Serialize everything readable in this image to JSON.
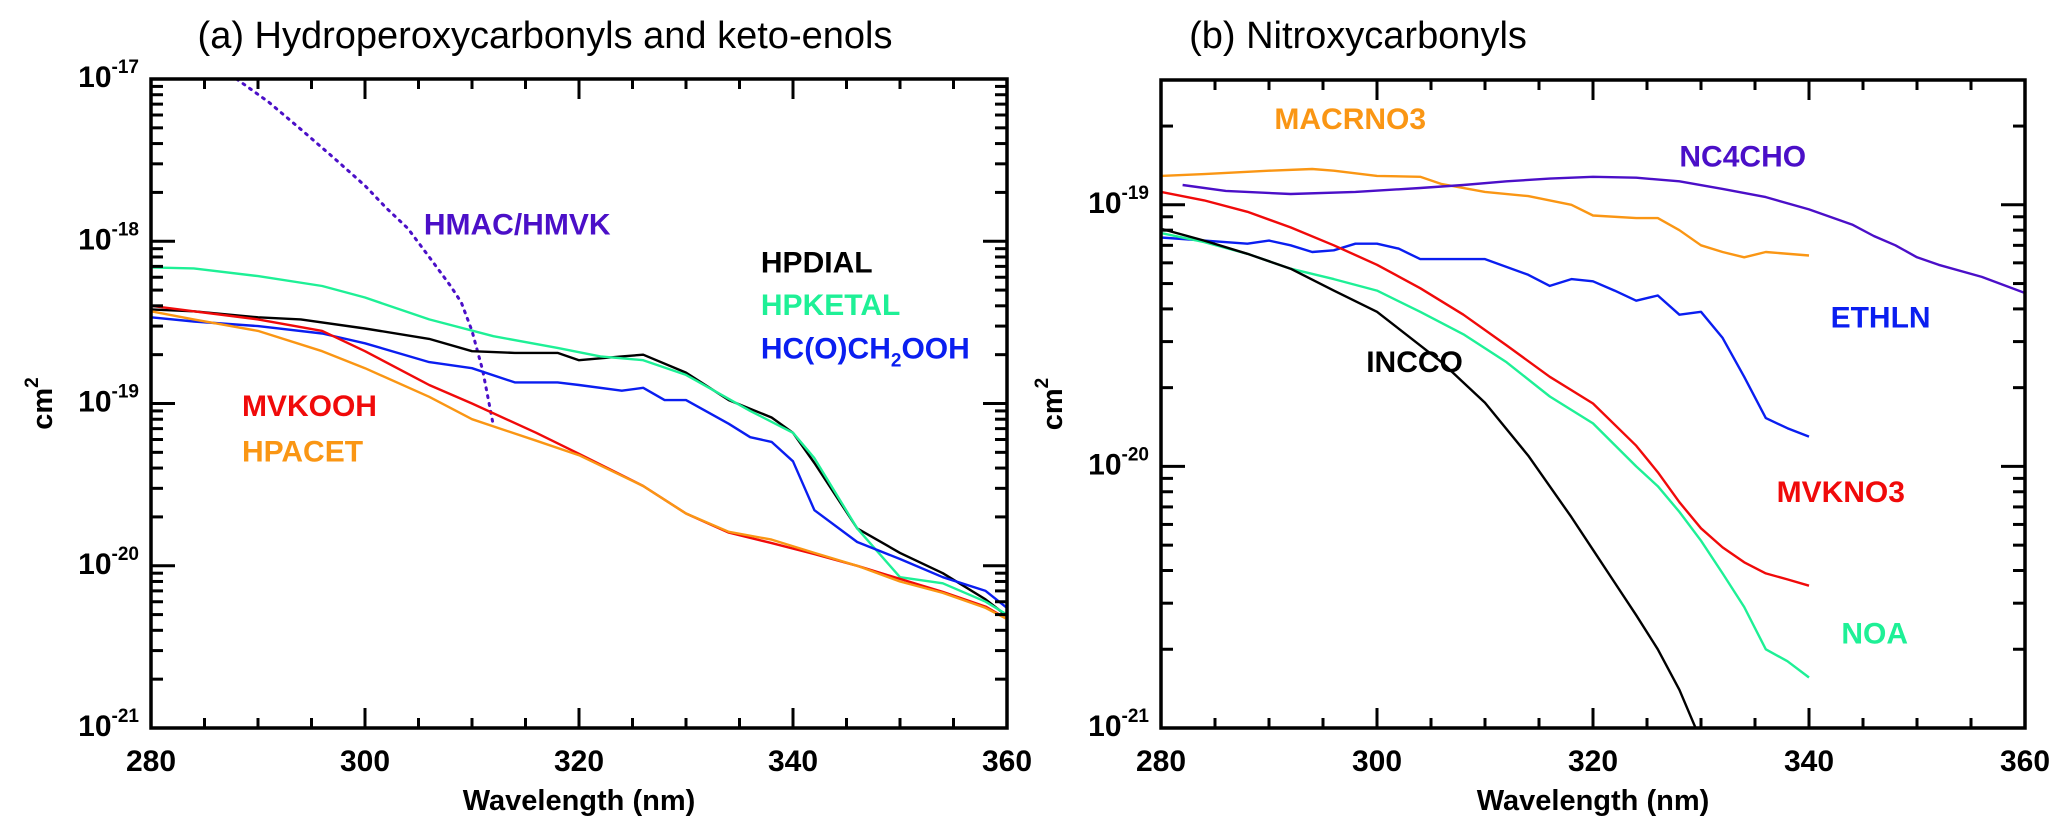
{
  "chart_data": [
    {
      "type": "line",
      "title": "(a) Hydroperoxycarbonyls and keto-enols",
      "xlabel": "Wavelength (nm)",
      "ylabel": "cm",
      "ylabel_superscript": "2",
      "yscale": "log",
      "xlim": [
        280,
        360
      ],
      "ylim": [
        1e-21,
        1e-17
      ],
      "xticks": [
        280,
        300,
        320,
        340,
        360
      ],
      "xtick_labels": [
        "280",
        "300",
        "320",
        "340",
        "360"
      ],
      "yticks": [
        1e-21,
        1e-20,
        1e-19,
        1e-18,
        1e-17
      ],
      "ytick_labels": [
        {
          "base": "10",
          "exp": "-21"
        },
        {
          "base": "10",
          "exp": "-20"
        },
        {
          "base": "10",
          "exp": "-19"
        },
        {
          "base": "10",
          "exp": "-18"
        },
        {
          "base": "10",
          "exp": "-17"
        }
      ],
      "grid": false,
      "series": [
        {
          "name": "HMAC/HMVK",
          "color": "#4B0FC8",
          "style": "dotted",
          "x": [
            288,
            291,
            294,
            297,
            300,
            302,
            304,
            306,
            308,
            309,
            310,
            311,
            312
          ],
          "y": [
            1e-17,
            7.2e-18,
            4.9e-18,
            3.3e-18,
            2.2e-18,
            1.6e-18,
            1.2e-18,
            8e-19,
            5.3e-19,
            4.2e-19,
            2.8e-19,
            1.6e-19,
            7.3e-20
          ]
        },
        {
          "name": "HPDIAL",
          "color": "#000000",
          "style": "solid",
          "x": [
            280,
            284,
            290,
            294,
            300,
            306,
            310,
            314,
            318,
            320,
            324,
            326,
            330,
            334,
            338,
            340,
            342,
            346,
            350,
            354,
            358,
            360
          ],
          "y": [
            3.8e-19,
            3.7e-19,
            3.4e-19,
            3.3e-19,
            2.9e-19,
            2.5e-19,
            2.1e-19,
            2.05e-19,
            2.05e-19,
            1.85e-19,
            1.95e-19,
            2e-19,
            1.55e-19,
            1.05e-19,
            8.2e-20,
            6.6e-20,
            4.3e-20,
            1.7e-20,
            1.2e-20,
            9e-21,
            6.2e-21,
            4.9e-21
          ]
        },
        {
          "name": "HPKETAL",
          "color": "#1EF096",
          "style": "solid",
          "x": [
            280,
            284,
            290,
            296,
            300,
            306,
            312,
            318,
            322,
            326,
            330,
            336,
            340,
            342,
            346,
            350,
            354,
            358,
            360
          ],
          "y": [
            6.9e-19,
            6.8e-19,
            6.1e-19,
            5.3e-19,
            4.5e-19,
            3.3e-19,
            2.6e-19,
            2.2e-19,
            1.95e-19,
            1.85e-19,
            1.5e-19,
            9e-20,
            6.6e-20,
            4.6e-20,
            1.7e-20,
            8.5e-21,
            7.8e-21,
            6e-21,
            5e-21
          ]
        },
        {
          "name": "HC(O)CH2OOH",
          "color": "#0A1EF0",
          "style": "solid",
          "x": [
            280,
            284,
            290,
            296,
            300,
            306,
            310,
            314,
            318,
            320,
            324,
            326,
            328,
            330,
            334,
            336,
            338,
            340,
            342,
            346,
            350,
            354,
            358,
            360
          ],
          "y": [
            3.4e-19,
            3.2e-19,
            3e-19,
            2.7e-19,
            2.35e-19,
            1.8e-19,
            1.65e-19,
            1.35e-19,
            1.35e-19,
            1.3e-19,
            1.2e-19,
            1.25e-19,
            1.05e-19,
            1.05e-19,
            7.5e-20,
            6.2e-20,
            5.8e-20,
            4.4e-20,
            2.2e-20,
            1.4e-20,
            1.1e-20,
            8.5e-21,
            7e-21,
            5.5e-21
          ]
        },
        {
          "name": "MVKOOH",
          "color": "#F00A0A",
          "style": "solid",
          "x": [
            280,
            284,
            290,
            296,
            300,
            306,
            310,
            316,
            320,
            326,
            330,
            334,
            338,
            342,
            346,
            350,
            354,
            358,
            360
          ],
          "y": [
            4e-19,
            3.7e-19,
            3.3e-19,
            2.8e-19,
            2.1e-19,
            1.3e-19,
            1e-19,
            6.6e-20,
            4.9e-20,
            3.1e-20,
            2.1e-20,
            1.6e-20,
            1.38e-20,
            1.18e-20,
            1e-20,
            8.3e-21,
            6.9e-21,
            5.6e-21,
            4.7e-21
          ]
        },
        {
          "name": "HPACET",
          "color": "#FA9614",
          "style": "solid",
          "x": [
            280,
            284,
            290,
            296,
            300,
            306,
            310,
            316,
            320,
            326,
            330,
            334,
            338,
            342,
            346,
            350,
            354,
            358,
            360
          ],
          "y": [
            3.7e-19,
            3.3e-19,
            2.8e-19,
            2.1e-19,
            1.65e-19,
            1.1e-19,
            8e-20,
            5.9e-20,
            4.8e-20,
            3.1e-20,
            2.1e-20,
            1.62e-20,
            1.45e-20,
            1.2e-20,
            1e-20,
            8e-21,
            6.8e-21,
            5.5e-21,
            4.7e-21
          ]
        }
      ],
      "annotations": [
        {
          "text": "HMAC/HMVK",
          "series": "HMAC/HMVK",
          "x": 305.5,
          "y": 1.1e-18
        },
        {
          "text": "HPDIAL",
          "series": "HPDIAL",
          "x": 337,
          "y": 6.4e-19
        },
        {
          "text": "HPKETAL",
          "series": "HPKETAL",
          "x": 337,
          "y": 3.5e-19
        },
        {
          "text": "HC(O)CH",
          "sub": "2",
          "tail": "OOH",
          "series": "HC(O)CH2OOH",
          "x": 337,
          "y": 1.9e-19
        },
        {
          "text": "MVKOOH",
          "series": "MVKOOH",
          "x": 288.5,
          "y": 8.4e-20
        },
        {
          "text": "HPACET",
          "series": "HPACET",
          "x": 288.5,
          "y": 4.4e-20
        }
      ]
    },
    {
      "type": "line",
      "title": "(b) Nitroxycarbonyls",
      "xlabel": "Wavelength (nm)",
      "ylabel": "cm",
      "ylabel_superscript": "2",
      "yscale": "log",
      "xlim": [
        280,
        360
      ],
      "ylim": [
        1e-21,
        3e-19
      ],
      "xticks": [
        280,
        300,
        320,
        340,
        360
      ],
      "xtick_labels": [
        "280",
        "300",
        "320",
        "340",
        "360"
      ],
      "yticks": [
        1e-21,
        1e-20,
        1e-19
      ],
      "ytick_labels": [
        {
          "base": "10",
          "exp": "-21"
        },
        {
          "base": "10",
          "exp": "-20"
        },
        {
          "base": "10",
          "exp": "-19"
        }
      ],
      "grid": false,
      "series": [
        {
          "name": "MACRNO3",
          "color": "#FA9614",
          "style": "solid",
          "x": [
            280,
            284,
            290,
            294,
            296,
            300,
            304,
            306,
            310,
            314,
            318,
            320,
            324,
            326,
            328,
            330,
            332,
            334,
            336,
            340
          ],
          "y": [
            1.29e-19,
            1.31e-19,
            1.35e-19,
            1.37e-19,
            1.35e-19,
            1.29e-19,
            1.28e-19,
            1.2e-19,
            1.12e-19,
            1.08e-19,
            1e-19,
            9.1e-20,
            8.9e-20,
            8.9e-20,
            8e-20,
            7e-20,
            6.6e-20,
            6.3e-20,
            6.6e-20,
            6.4e-20
          ]
        },
        {
          "name": "NC4CHO",
          "color": "#4B0FC8",
          "style": "solid",
          "x": [
            282,
            286,
            292,
            298,
            304,
            308,
            312,
            316,
            320,
            324,
            328,
            332,
            336,
            340,
            344,
            346,
            348,
            350,
            352,
            356,
            360
          ],
          "y": [
            1.19e-19,
            1.13e-19,
            1.1e-19,
            1.12e-19,
            1.16e-19,
            1.19e-19,
            1.23e-19,
            1.26e-19,
            1.28e-19,
            1.27e-19,
            1.23e-19,
            1.15e-19,
            1.07e-19,
            9.6e-20,
            8.4e-20,
            7.6e-20,
            7e-20,
            6.3e-20,
            5.9e-20,
            5.3e-20,
            4.6e-20
          ]
        },
        {
          "name": "ETHLN",
          "color": "#0A1EF0",
          "style": "solid",
          "x": [
            280,
            284,
            288,
            290,
            292,
            294,
            296,
            298,
            300,
            302,
            304,
            306,
            310,
            314,
            316,
            318,
            320,
            322,
            324,
            326,
            328,
            330,
            332,
            334,
            336,
            338,
            340
          ],
          "y": [
            7.5e-20,
            7.3e-20,
            7.1e-20,
            7.3e-20,
            7e-20,
            6.6e-20,
            6.7e-20,
            7.1e-20,
            7.1e-20,
            6.8e-20,
            6.2e-20,
            6.2e-20,
            6.2e-20,
            5.4e-20,
            4.9e-20,
            5.2e-20,
            5.1e-20,
            4.7e-20,
            4.3e-20,
            4.5e-20,
            3.8e-20,
            3.9e-20,
            3.1e-20,
            2.2e-20,
            1.53e-20,
            1.4e-20,
            1.3e-20
          ]
        },
        {
          "name": "MVKNO3",
          "color": "#F00A0A",
          "style": "solid",
          "x": [
            280,
            284,
            288,
            292,
            296,
            300,
            304,
            308,
            312,
            316,
            320,
            324,
            326,
            328,
            330,
            332,
            334,
            336,
            338,
            340
          ],
          "y": [
            1.12e-19,
            1.04e-19,
            9.4e-20,
            8.2e-20,
            7e-20,
            5.9e-20,
            4.8e-20,
            3.8e-20,
            2.9e-20,
            2.2e-20,
            1.74e-20,
            1.2e-20,
            9.5e-21,
            7.3e-21,
            5.8e-21,
            4.9e-21,
            4.3e-21,
            3.9e-21,
            3.7e-21,
            3.5e-21
          ]
        },
        {
          "name": "NOA",
          "color": "#1EF096",
          "style": "solid",
          "x": [
            280,
            284,
            288,
            292,
            296,
            300,
            304,
            308,
            312,
            316,
            320,
            324,
            326,
            328,
            330,
            332,
            334,
            336,
            338,
            340
          ],
          "y": [
            7.8e-20,
            7.2e-20,
            6.5e-20,
            5.7e-20,
            5.2e-20,
            4.7e-20,
            3.9e-20,
            3.2e-20,
            2.5e-20,
            1.85e-20,
            1.46e-20,
            1e-20,
            8.4e-21,
            6.7e-21,
            5.2e-21,
            3.9e-21,
            2.9e-21,
            2e-21,
            1.8e-21,
            1.56e-21
          ]
        },
        {
          "name": "INCCO",
          "color": "#000000",
          "style": "solid",
          "x": [
            280,
            284,
            288,
            292,
            296,
            300,
            304,
            306,
            310,
            314,
            318,
            320,
            322,
            324,
            326,
            328,
            329.5
          ],
          "y": [
            8.1e-20,
            7.3e-20,
            6.5e-20,
            5.7e-20,
            4.7e-20,
            3.9e-20,
            2.9e-20,
            2.5e-20,
            1.75e-20,
            1.1e-20,
            6.4e-21,
            4.8e-21,
            3.6e-21,
            2.7e-21,
            2e-21,
            1.4e-21,
            1e-21
          ]
        }
      ],
      "annotations": [
        {
          "text": "MACRNO3",
          "series": "MACRNO3",
          "x": 290.5,
          "y": 1.95e-19
        },
        {
          "text": "NC4CHO",
          "series": "NC4CHO",
          "x": 328,
          "y": 1.4e-19
        },
        {
          "text": "ETHLN",
          "series": "ETHLN",
          "x": 342,
          "y": 3.4e-20
        },
        {
          "text": "INCCO",
          "series": "INCCO",
          "x": 299,
          "y": 2.3e-20
        },
        {
          "text": "MVKNO3",
          "series": "MVKNO3",
          "x": 337,
          "y": 7.3e-21
        },
        {
          "text": "NOA",
          "series": "NOA",
          "x": 343,
          "y": 2.1e-21
        }
      ]
    }
  ]
}
